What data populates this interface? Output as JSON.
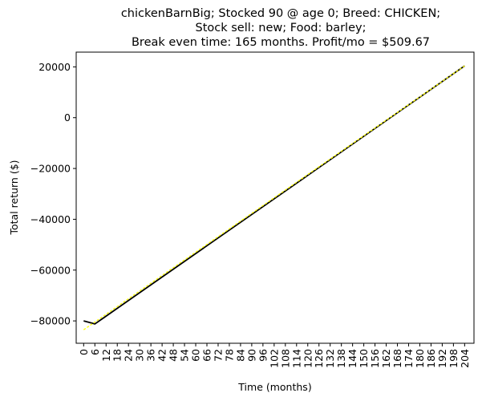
{
  "chart_data": {
    "type": "line",
    "title_lines": [
      "chickenBarnBig; Stocked 90 @ age 0; Breed: CHICKEN;",
      "Stock sell: new; Food: barley;",
      "Break even time: 165 months. Profit/mo = $509.67"
    ],
    "xlabel": "Time (months)",
    "ylabel": "Total return ($)",
    "xlim": [
      -4,
      209
    ],
    "ylim": [
      -88800,
      25800
    ],
    "x_ticks": [
      0,
      6,
      12,
      18,
      24,
      30,
      36,
      42,
      48,
      54,
      60,
      66,
      72,
      78,
      84,
      90,
      96,
      102,
      108,
      114,
      120,
      126,
      132,
      138,
      144,
      150,
      156,
      162,
      168,
      174,
      180,
      186,
      192,
      198,
      204
    ],
    "y_ticks": [
      -80000,
      -60000,
      -40000,
      -20000,
      0,
      20000
    ],
    "y_tick_labels": [
      "−80000",
      "−60000",
      "−40000",
      "−20000",
      "0",
      "20000"
    ],
    "grid": false,
    "legend": "none",
    "series": [
      {
        "style": "solid",
        "color": "#000000",
        "x": [
          0,
          6,
          204
        ],
        "y": [
          -80000,
          -81200,
          20400
        ]
      },
      {
        "style": "dashed",
        "color": "#ffff00",
        "x": [
          0,
          204
        ],
        "y": [
          -83500,
          20400
        ]
      }
    ]
  }
}
